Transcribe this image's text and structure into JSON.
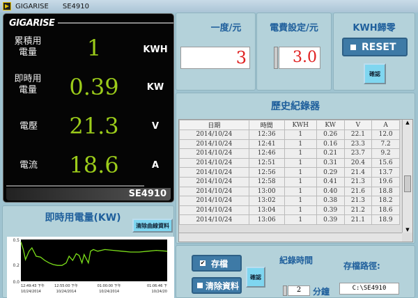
{
  "window": {
    "app": "GIGARISE",
    "model": "SE4910"
  },
  "display": {
    "logo": "GIGARISE",
    "rows": [
      {
        "label": "累積用電量",
        "value": "1",
        "unit": "KWH"
      },
      {
        "label": "即時用電量",
        "value": "0.39",
        "unit": "KW"
      },
      {
        "label": "電壓",
        "value": "21.3",
        "unit": "V"
      },
      {
        "label": "電流",
        "value": "18.6",
        "unit": "A"
      }
    ],
    "footer": "SE4910"
  },
  "chart_panel": {
    "title": "即時用電量(KW)",
    "clear_button": "清除曲線資料"
  },
  "chart_data": {
    "type": "line",
    "ylim": [
      0,
      0.5
    ],
    "yticks": [
      "0.5",
      "0.2",
      "0.0"
    ],
    "xlim": [
      "12:49:43",
      "13:06:46"
    ],
    "xticks": [
      [
        "12:49:43 下午",
        "10/24/2014"
      ],
      [
        "12:55:00 下午",
        "10/24/2014"
      ],
      [
        "01:00:00 下午",
        "10/24/2014"
      ],
      [
        "01:06:46 下",
        "10/24/20"
      ]
    ],
    "grid": false,
    "color": "#7ce01a",
    "x": [
      "12:49:43",
      "12:50:00",
      "12:50:15",
      "12:50:40",
      "12:51:00",
      "12:51:30",
      "12:52:00",
      "12:52:30",
      "12:53:00",
      "12:53:30",
      "12:54:00",
      "12:54:30",
      "12:55:00",
      "12:55:20",
      "12:55:45",
      "12:56:10",
      "12:56:30",
      "12:56:50",
      "12:57:05",
      "12:57:20",
      "12:57:35",
      "12:57:50",
      "12:58:10",
      "12:58:40",
      "12:59:30",
      "13:00:30",
      "13:01:30",
      "13:02:30",
      "13:03:30",
      "13:04:30",
      "13:05:30",
      "13:06:46"
    ],
    "y": [
      0.47,
      0.38,
      0.26,
      0.36,
      0.4,
      0.3,
      0.29,
      0.25,
      0.22,
      0.2,
      0.19,
      0.19,
      0.22,
      0.3,
      0.25,
      0.33,
      0.31,
      0.22,
      0.32,
      0.27,
      0.22,
      0.36,
      0.38,
      0.36,
      0.38,
      0.37,
      0.36,
      0.35,
      0.35,
      0.36,
      0.37,
      0.36
    ]
  },
  "price": {
    "title": "一度/元",
    "value": "3"
  },
  "setting": {
    "title": "電費設定/元",
    "value": "3.0"
  },
  "kwh_reset": {
    "title": "KWH歸零",
    "reset_label": "RESET",
    "confirm": "確認"
  },
  "history": {
    "title": "歷史紀錄器",
    "columns": [
      "日期",
      "時間",
      "KWH",
      "KW",
      "V",
      "A"
    ],
    "rows": [
      [
        "2014/10/24",
        "12:36",
        "1",
        "0.26",
        "22.1",
        "12.0"
      ],
      [
        "2014/10/24",
        "12:41",
        "1",
        "0.16",
        "23.3",
        "7.2"
      ],
      [
        "2014/10/24",
        "12:46",
        "1",
        "0.21",
        "23.7",
        "9.2"
      ],
      [
        "2014/10/24",
        "12:51",
        "1",
        "0.31",
        "20.4",
        "15.6"
      ],
      [
        "2014/10/24",
        "12:56",
        "1",
        "0.29",
        "21.4",
        "13.7"
      ],
      [
        "2014/10/24",
        "12:58",
        "1",
        "0.41",
        "21.3",
        "19.6"
      ],
      [
        "2014/10/24",
        "13:00",
        "1",
        "0.40",
        "21.6",
        "18.8"
      ],
      [
        "2014/10/24",
        "13:02",
        "1",
        "0.38",
        "21.3",
        "18.2"
      ],
      [
        "2014/10/24",
        "13:04",
        "1",
        "0.39",
        "21.2",
        "18.6"
      ],
      [
        "2014/10/24",
        "13:06",
        "1",
        "0.39",
        "21.1",
        "18.9"
      ]
    ]
  },
  "bottom": {
    "save": "存檔",
    "clear": "清除資料",
    "confirm": "確認",
    "interval_label": "紀錄時間",
    "interval": "2",
    "interval_unit": "分鐘",
    "path_label": "存檔路徑:",
    "path": "C:\\SE4910"
  }
}
